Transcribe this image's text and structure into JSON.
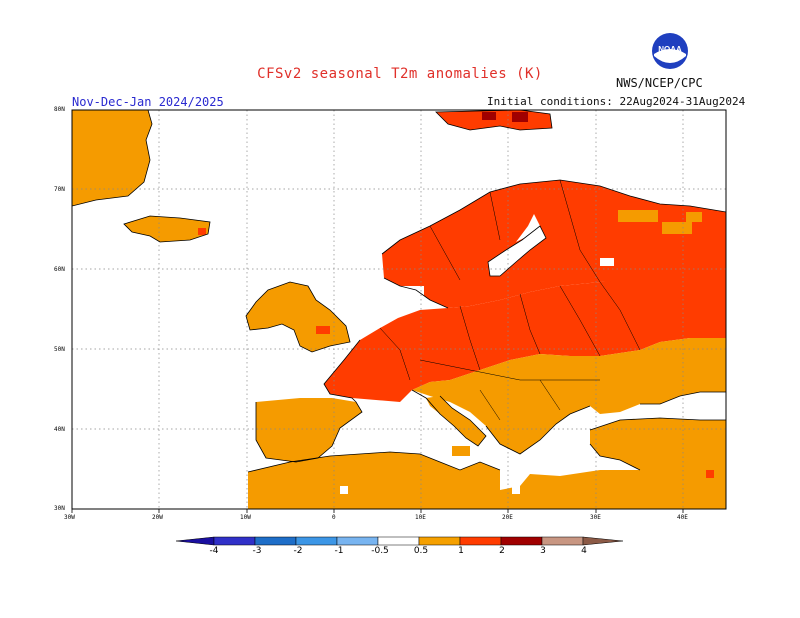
{
  "title": "CFSv2 seasonal T2m anomalies (K)",
  "agency": "NWS/NCEP/CPC",
  "period": "Nov-Dec-Jan 2024/2025",
  "initial_conditions": "Initial conditions: 22Aug2024-31Aug2024",
  "logo": {
    "text": "NOAA",
    "icon": "noaa-logo-icon"
  },
  "map": {
    "region": "Europe",
    "lon_range": [
      -30,
      45
    ],
    "lat_range": [
      30,
      80
    ],
    "lat_labels": [
      "80N",
      "70N",
      "60N",
      "50N",
      "40N",
      "30N"
    ],
    "lon_labels": [
      "30W",
      "20W",
      "10W",
      "0",
      "10E",
      "20E",
      "30E",
      "40E"
    ],
    "grid": "dotted"
  },
  "legend": {
    "labels": [
      "-4",
      "-3",
      "-2",
      "-1",
      "-0.5",
      "0.5",
      "1",
      "2",
      "3",
      "4"
    ],
    "colors": [
      "#1a0fa0",
      "#3030c8",
      "#1e6ec8",
      "#3c96e6",
      "#78b4f0",
      "#ffffff",
      "#f5a000",
      "#ff3c00",
      "#a00000",
      "#c89682",
      "#8c5a46"
    ],
    "shading": {
      "0.5-1": "#f59b00",
      "1-2": "#ff3c00",
      "2-3": "#a00000"
    }
  }
}
